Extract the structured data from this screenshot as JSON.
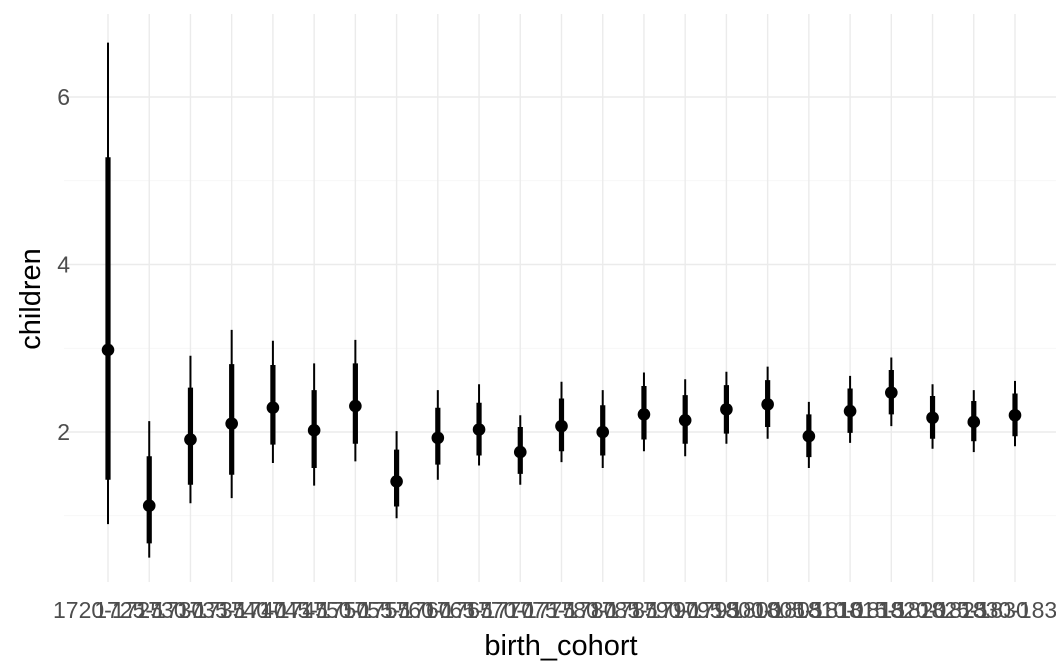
{
  "chart_data": {
    "type": "pointrange",
    "title": "",
    "xlabel": "birth_cohort",
    "ylabel": "children",
    "ylim": [
      0.35,
      6.85
    ],
    "y_ticks": [
      2,
      4,
      6
    ],
    "grid": true,
    "categories": [
      "1720",
      "1725",
      "1730",
      "1735",
      "1740",
      "1745",
      "1750",
      "1755",
      "1760",
      "1765",
      "1770",
      "1775",
      "1780",
      "1785",
      "1790",
      "1795",
      "1800",
      "1805",
      "1810",
      "1815",
      "1820",
      "1825",
      "1830"
    ],
    "x_tick_labels": [
      "1720-1725",
      "1725-1730",
      "1730-1735",
      "1735-1740",
      "1740-1745",
      "1745-1750",
      "1750-1755",
      "1755-1760",
      "1760-1765",
      "1765-1770",
      "1770-1775",
      "1775-1780",
      "1780-1785",
      "1785-1790",
      "1790-1795",
      "1795-1800",
      "1800-1805",
      "1805-1810",
      "1810-1815",
      "1815-1820",
      "1820-1825",
      "1825-1830",
      "1830-1835"
    ],
    "point": [
      2.98,
      1.12,
      1.91,
      2.1,
      2.29,
      2.02,
      2.31,
      1.41,
      1.93,
      2.03,
      1.76,
      2.07,
      2.0,
      2.21,
      2.14,
      2.27,
      2.33,
      1.95,
      2.25,
      2.47,
      2.17,
      2.12,
      2.2
    ],
    "inner_low": [
      1.43,
      0.67,
      1.37,
      1.49,
      1.85,
      1.57,
      1.86,
      1.11,
      1.61,
      1.72,
      1.5,
      1.77,
      1.72,
      1.91,
      1.86,
      1.98,
      2.06,
      1.7,
      1.99,
      2.21,
      1.92,
      1.89,
      1.95
    ],
    "inner_high": [
      5.28,
      1.71,
      2.53,
      2.81,
      2.8,
      2.5,
      2.82,
      1.79,
      2.29,
      2.35,
      2.06,
      2.4,
      2.32,
      2.55,
      2.44,
      2.56,
      2.62,
      2.21,
      2.52,
      2.74,
      2.43,
      2.37,
      2.46
    ],
    "outer_low": [
      0.9,
      0.5,
      1.15,
      1.21,
      1.63,
      1.36,
      1.65,
      0.97,
      1.43,
      1.6,
      1.37,
      1.64,
      1.57,
      1.77,
      1.71,
      1.86,
      1.92,
      1.57,
      1.87,
      2.07,
      1.8,
      1.76,
      1.83
    ],
    "outer_high": [
      6.65,
      2.13,
      2.91,
      3.22,
      3.09,
      2.82,
      3.1,
      2.01,
      2.5,
      2.57,
      2.2,
      2.6,
      2.5,
      2.71,
      2.63,
      2.72,
      2.78,
      2.36,
      2.67,
      2.89,
      2.57,
      2.5,
      2.61
    ]
  }
}
